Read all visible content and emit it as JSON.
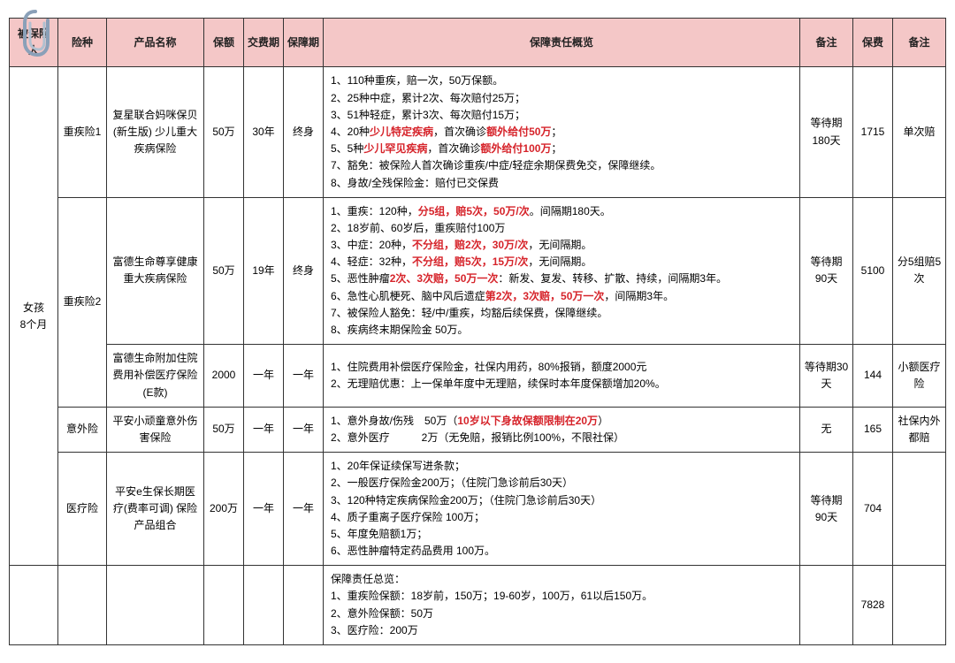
{
  "columns": [
    "被保险人",
    "险种",
    "产品名称",
    "保额",
    "交费期",
    "保障期",
    "保障责任概览",
    "备注",
    "保费",
    "备注"
  ],
  "insured": "女孩\n8个月",
  "rows": [
    {
      "type": "重疾险1",
      "name": "复星联合妈咪保贝(新生版) 少儿重大疾病保险",
      "amount": "50万",
      "payterm": "30年",
      "cover": "终身",
      "desc_lines": [
        [
          {
            "t": "1、110种重疾，赔一次，50万保额。"
          }
        ],
        [
          {
            "t": "2、25种中症，累计2次、每次赔付25万；"
          }
        ],
        [
          {
            "t": "3、51种轻症，累计3次、每次赔付15万；"
          }
        ],
        [
          {
            "t": "4、20种"
          },
          {
            "t": "少儿特定疾病",
            "red": true
          },
          {
            "t": "，首次确诊"
          },
          {
            "t": "额外给付50万",
            "red": true
          },
          {
            "t": "；"
          }
        ],
        [
          {
            "t": "5、5种"
          },
          {
            "t": "少儿罕见疾病",
            "red": true
          },
          {
            "t": "，首次确诊"
          },
          {
            "t": "额外给付100万",
            "red": true
          },
          {
            "t": "；"
          }
        ],
        [
          {
            "t": "7、豁免：被保险人首次确诊重疾/中症/轻症余期保费免交，保障继续。"
          }
        ],
        [
          {
            "t": "8、身故/全残保险金：赔付已交保费"
          }
        ]
      ],
      "note": "等待期\n180天",
      "fee": "1715",
      "note2": "单次赔"
    },
    {
      "type": "重疾险2",
      "type_rowspan": 2,
      "name": "富德生命尊享健康重大疾病保险",
      "amount": "50万",
      "payterm": "19年",
      "cover": "终身",
      "desc_lines": [
        [
          {
            "t": "1、重疾：120种，"
          },
          {
            "t": "分5组，赔5次，50万/次",
            "red": true
          },
          {
            "t": "。间隔期180天。"
          }
        ],
        [
          {
            "t": "2、18岁前、60岁后，重疾赔付100万"
          }
        ],
        [
          {
            "t": "3、中症：20种，"
          },
          {
            "t": "不分组，赔2次，30万/次",
            "red": true
          },
          {
            "t": "，无间隔期。"
          }
        ],
        [
          {
            "t": "4、轻症：32种，"
          },
          {
            "t": "不分组，赔5次，15万/次",
            "red": true
          },
          {
            "t": "，无间隔期。"
          }
        ],
        [
          {
            "t": "5、恶性肿瘤"
          },
          {
            "t": "2次、3次赔，50万一次",
            "red": true
          },
          {
            "t": "：新发、复发、转移、扩散、持续，间隔期3年。"
          }
        ],
        [
          {
            "t": "6、急性心肌梗死、脑中风后遗症"
          },
          {
            "t": "第2次，3次赔，50万一次",
            "red": true
          },
          {
            "t": "，间隔期3年。"
          }
        ],
        [
          {
            "t": "7、被保险人豁免：轻/中/重疾，均豁后续保费，保障继续。"
          }
        ],
        [
          {
            "t": "8、疾病终末期保险金 50万。"
          }
        ]
      ],
      "note": "等待期\n90天",
      "fee": "5100",
      "note2": "分5组赔5次"
    },
    {
      "name": "富德生命附加住院费用补偿医疗保险(E款)",
      "amount": "2000",
      "payterm": "一年",
      "cover": "一年",
      "desc_lines": [
        [
          {
            "t": "1、住院费用补偿医疗保险金，社保内用药，80%报销，额度2000元"
          }
        ],
        [
          {
            "t": "2、无理赔优惠：上一保单年度中无理赔，续保时本年度保额增加20%。"
          }
        ]
      ],
      "note": "等待期30天",
      "fee": "144",
      "note2": "小额医疗险"
    },
    {
      "type": "意外险",
      "name": "平安小顽童意外伤害保险",
      "amount": "50万",
      "payterm": "一年",
      "cover": "一年",
      "desc_lines": [
        [
          {
            "t": "1、意外身故/伤残　50万（"
          },
          {
            "t": "10岁以下身故保额限制在20万",
            "red": true
          },
          {
            "t": "）"
          }
        ],
        [
          {
            "t": "2、意外医疗　　　2万（无免赔，报销比例100%，不限社保）"
          }
        ]
      ],
      "note": "无",
      "fee": "165",
      "note2": "社保内外都赔"
    },
    {
      "type": "医疗险",
      "name": "平安e生保长期医疗(费率可调) 保险产品组合",
      "amount": "200万",
      "payterm": "一年",
      "cover": "一年",
      "desc_lines": [
        [
          {
            "t": "1、20年保证续保写进条款；"
          }
        ],
        [
          {
            "t": "2、一般医疗保险金200万；（住院门急诊前后30天）"
          }
        ],
        [
          {
            "t": "3、120种特定疾病保险金200万；（住院门急诊前后30天）"
          }
        ],
        [
          {
            "t": "4、质子重离子医疗保险 100万；"
          }
        ],
        [
          {
            "t": "5、年度免赔额1万；"
          }
        ],
        [
          {
            "t": "6、恶性肿瘤特定药品费用 100万。"
          }
        ]
      ],
      "note": "等待期\n90天",
      "fee": "704",
      "note2": ""
    }
  ],
  "summary": {
    "desc_lines": [
      [
        {
          "t": "保障责任总览："
        }
      ],
      [
        {
          "t": "1、重疾险保额：18岁前，150万；19-60岁，100万，61以后150万。"
        }
      ],
      [
        {
          "t": "2、意外险保额：50万"
        }
      ],
      [
        {
          "t": "3、医疗险：200万"
        }
      ]
    ],
    "fee": "7828"
  },
  "style": {
    "header_bg": "#f4c7c7",
    "border": "#333333",
    "red": "#d6232a",
    "fontsize_body": 12,
    "fontsize_header": 12
  }
}
